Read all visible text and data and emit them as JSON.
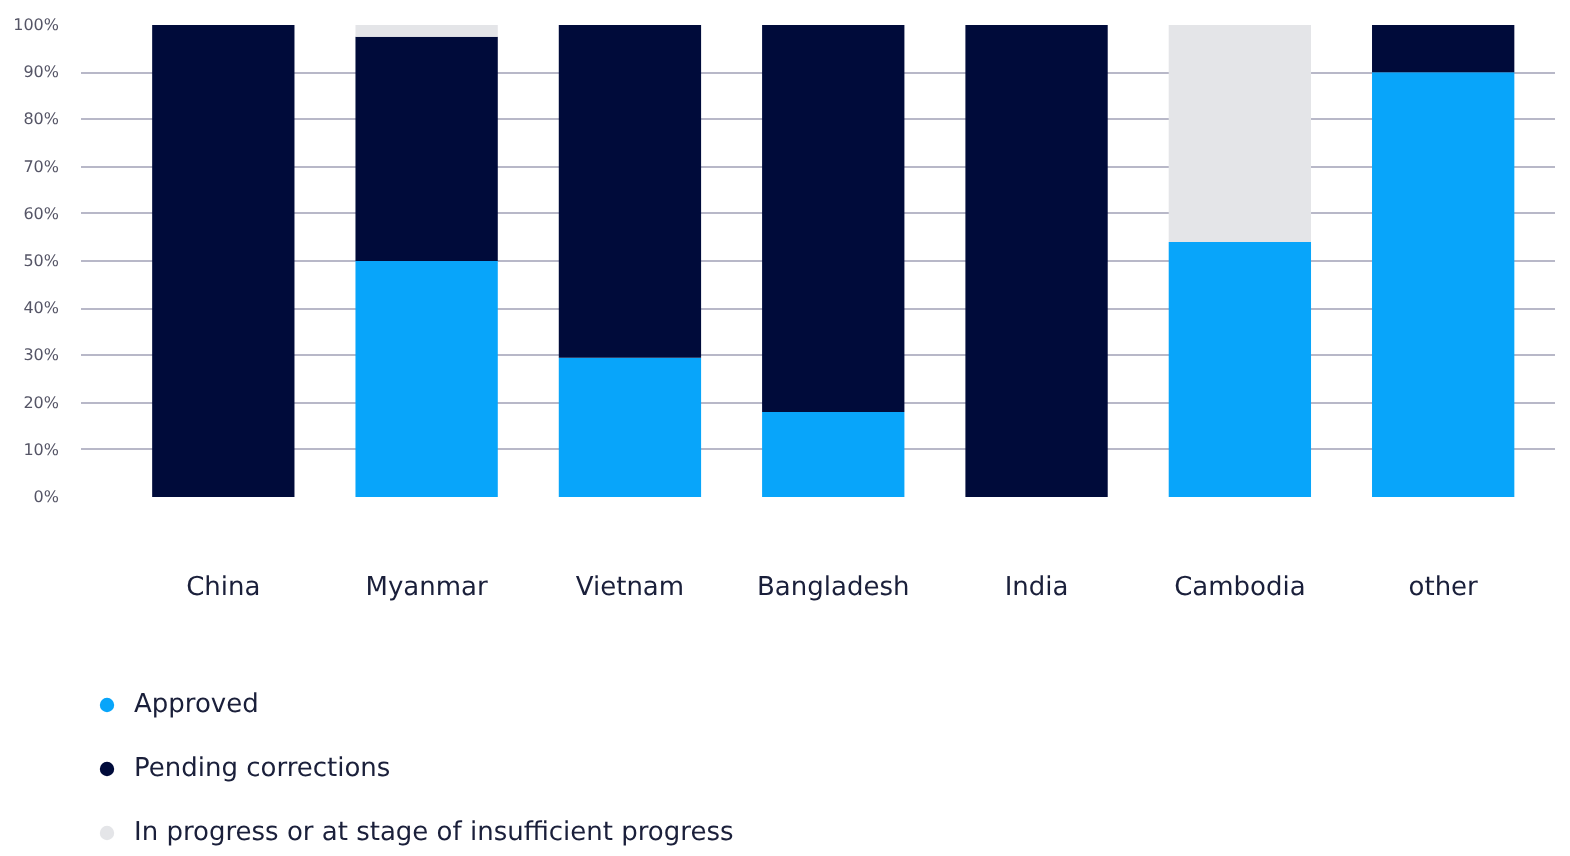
{
  "chart_data": {
    "type": "bar",
    "stacked": true,
    "categories": [
      "China",
      "Myanmar",
      "Vietnam",
      "Bangladesh",
      "India",
      "Cambodia",
      "other"
    ],
    "series": [
      {
        "name": "Approved",
        "color": "#08a5fa",
        "values": [
          0,
          50,
          29.5,
          18,
          0,
          54,
          90
        ]
      },
      {
        "name": "Pending corrections",
        "color": "#000b3a",
        "values": [
          100,
          47.5,
          70.5,
          82,
          100,
          0,
          10
        ]
      },
      {
        "name": "In progress or at stage of insufficient progress",
        "color": "#e4e5e8",
        "values": [
          0,
          2.5,
          0,
          0,
          0,
          46,
          0
        ]
      }
    ],
    "ylim": [
      0,
      100
    ],
    "yticks": [
      {
        "value": 0,
        "label": "0%"
      },
      {
        "value": 10,
        "label": "10%"
      },
      {
        "value": 20,
        "label": "20%"
      },
      {
        "value": 30,
        "label": "30%"
      },
      {
        "value": 40,
        "label": "40%"
      },
      {
        "value": 50,
        "label": "50%"
      },
      {
        "value": 60,
        "label": "60%"
      },
      {
        "value": 70,
        "label": "70%"
      },
      {
        "value": 80,
        "label": "80%"
      },
      {
        "value": 90,
        "label": "90%"
      },
      {
        "value": 100,
        "label": "100%"
      }
    ],
    "grid": "y",
    "legend": "bottom",
    "marker": "circle"
  }
}
